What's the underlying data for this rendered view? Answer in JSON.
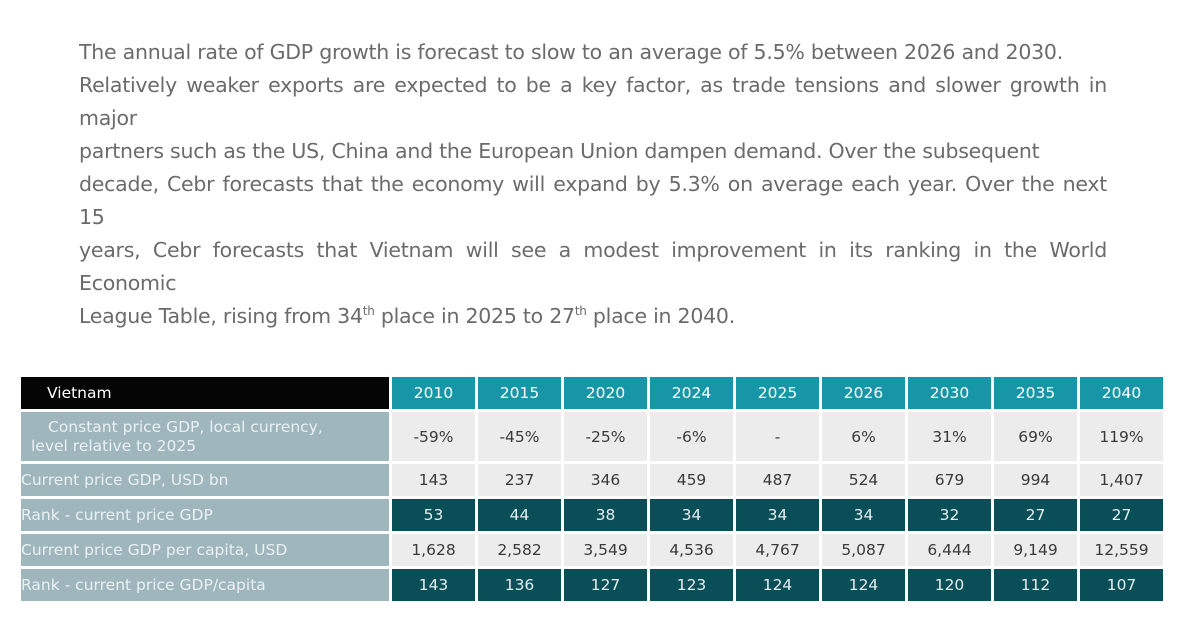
{
  "paragraph": {
    "line1": "The annual rate of GDP growth is forecast to slow to an average of 5.5% between 2026 and 2030.",
    "line2": "Relatively weaker exports are expected to be a key factor, as trade tensions and slower growth in major",
    "line3": "partners such as the US, China and the European Union dampen demand. Over the subsequent",
    "line4": "decade, Cebr forecasts that the economy will expand by 5.3% on average each year. Over the next 15",
    "line5": "years, Cebr forecasts that Vietnam will see a modest improvement in its ranking in the World Economic",
    "line6a": "League Table, rising from 34",
    "sup1": "th",
    "line6b": " place in 2025 to 27",
    "sup2": "th",
    "line6c": " place in 2040."
  },
  "table": {
    "corner": "Vietnam",
    "years": [
      "2010",
      "2015",
      "2020",
      "2024",
      "2025",
      "2026",
      "2030",
      "2035",
      "2040"
    ],
    "rows": [
      {
        "label_line1": "Constant price GDP, local currency,",
        "label_line2": "level relative to 2025",
        "values": [
          "-59%",
          "-45%",
          "-25%",
          "-6%",
          "-",
          "6%",
          "31%",
          "69%",
          "119%"
        ]
      },
      {
        "label": "Current price GDP, USD bn",
        "values": [
          "143",
          "237",
          "346",
          "459",
          "487",
          "524",
          "679",
          "994",
          "1,407"
        ]
      },
      {
        "label": "Rank - current price GDP",
        "values": [
          "53",
          "44",
          "38",
          "34",
          "34",
          "34",
          "32",
          "27",
          "27"
        ]
      },
      {
        "label": "Current price GDP per capita, USD",
        "values": [
          "1,628",
          "2,582",
          "3,549",
          "4,536",
          "4,767",
          "5,087",
          "6,444",
          "9,149",
          "12,559"
        ]
      },
      {
        "label": "Rank - current price GDP/capita",
        "values": [
          "143",
          "136",
          "127",
          "123",
          "124",
          "124",
          "120",
          "112",
          "107"
        ]
      }
    ]
  }
}
